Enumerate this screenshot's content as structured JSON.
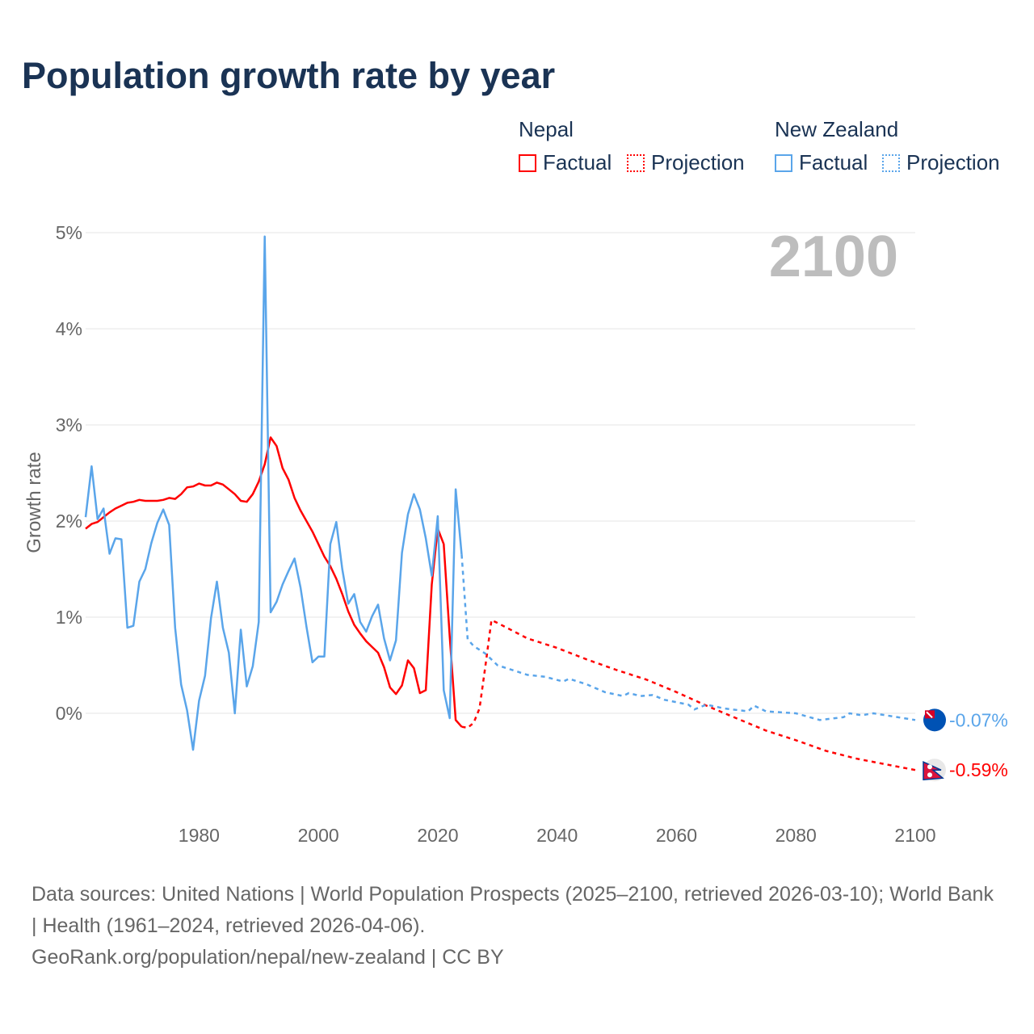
{
  "title": "Population growth rate by year",
  "legend": {
    "groups": [
      {
        "name": "Nepal",
        "color": "#ff0000",
        "factual": "Factual",
        "projection": "Projection"
      },
      {
        "name": "New Zealand",
        "color": "#5aa5ea",
        "factual": "Factual",
        "projection": "Projection"
      }
    ]
  },
  "footer": {
    "sources": "Data sources: United Nations | World Population Prospects (2025–2100, retrieved 2026-03-10); World Bank | Health (1961–2024, retrieved 2026-04-06).",
    "credit": "GeoRank.org/population/nepal/new-zealand | CC BY"
  },
  "chart_data": {
    "type": "line",
    "title": "Population growth rate by year",
    "ylabel": "Growth rate",
    "xlabel": "",
    "year_label": "2100",
    "xlim": [
      1961,
      2100
    ],
    "ylim": [
      -1.0,
      5.0
    ],
    "x_ticks": [
      1980,
      2000,
      2020,
      2040,
      2060,
      2080,
      2100
    ],
    "y_ticks": [
      {
        "v": 0,
        "label": "0%"
      },
      {
        "v": 1,
        "label": "1%"
      },
      {
        "v": 2,
        "label": "2%"
      },
      {
        "v": 3,
        "label": "3%"
      },
      {
        "v": 4,
        "label": "4%"
      },
      {
        "v": 5,
        "label": "5%"
      }
    ],
    "grid": true,
    "series": [
      {
        "name": "Nepal",
        "color": "#ff0000",
        "end_label": "-0.59%",
        "factual_start": 1961,
        "factual": [
          1.92,
          1.97,
          1.99,
          2.04,
          2.09,
          2.13,
          2.16,
          2.19,
          2.2,
          2.22,
          2.21,
          2.21,
          2.21,
          2.22,
          2.24,
          2.23,
          2.28,
          2.35,
          2.36,
          2.39,
          2.37,
          2.37,
          2.4,
          2.38,
          2.33,
          2.28,
          2.21,
          2.2,
          2.28,
          2.41,
          2.59,
          2.87,
          2.78,
          2.55,
          2.43,
          2.24,
          2.11,
          2.0,
          1.89,
          1.76,
          1.63,
          1.53,
          1.4,
          1.24,
          1.06,
          0.92,
          0.83,
          0.75,
          0.69,
          0.63,
          0.48,
          0.27,
          0.2,
          0.29,
          0.55,
          0.47,
          0.21,
          0.24,
          1.34,
          1.92,
          1.76,
          0.8,
          -0.07,
          -0.14
        ],
        "projection": [
          [
            2024,
            -0.14
          ],
          [
            2025,
            -0.15
          ],
          [
            2026,
            -0.1
          ],
          [
            2027,
            0.05
          ],
          [
            2028,
            0.5
          ],
          [
            2029,
            0.97
          ],
          [
            2030,
            0.94
          ],
          [
            2035,
            0.78
          ],
          [
            2040,
            0.68
          ],
          [
            2045,
            0.56
          ],
          [
            2050,
            0.45
          ],
          [
            2055,
            0.35
          ],
          [
            2060,
            0.22
          ],
          [
            2065,
            0.08
          ],
          [
            2070,
            -0.05
          ],
          [
            2075,
            -0.18
          ],
          [
            2080,
            -0.28
          ],
          [
            2085,
            -0.39
          ],
          [
            2090,
            -0.47
          ],
          [
            2095,
            -0.53
          ],
          [
            2100,
            -0.59
          ]
        ]
      },
      {
        "name": "New Zealand",
        "color": "#5aa5ea",
        "end_label": "-0.07%",
        "factual_start": 1961,
        "factual": [
          2.04,
          2.57,
          2.02,
          2.13,
          1.66,
          1.82,
          1.81,
          0.89,
          0.91,
          1.37,
          1.5,
          1.77,
          1.98,
          2.12,
          1.96,
          0.89,
          0.3,
          0.03,
          -0.38,
          0.13,
          0.39,
          0.99,
          1.37,
          0.89,
          0.63,
          0.0,
          0.87,
          0.28,
          0.49,
          0.95,
          4.96,
          1.05,
          1.16,
          1.34,
          1.48,
          1.61,
          1.31,
          0.9,
          0.53,
          0.59,
          0.59,
          1.76,
          1.99,
          1.5,
          1.14,
          1.24,
          0.95,
          0.85,
          1.01,
          1.13,
          0.78,
          0.55,
          0.76,
          1.67,
          2.07,
          2.28,
          2.12,
          1.82,
          1.43,
          2.05,
          0.24,
          -0.05,
          2.33,
          1.65
        ],
        "projection": [
          [
            2024,
            1.65
          ],
          [
            2025,
            0.77
          ],
          [
            2026,
            0.7
          ],
          [
            2028,
            0.62
          ],
          [
            2030,
            0.5
          ],
          [
            2033,
            0.44
          ],
          [
            2035,
            0.4
          ],
          [
            2038,
            0.38
          ],
          [
            2041,
            0.33
          ],
          [
            2042,
            0.36
          ],
          [
            2045,
            0.3
          ],
          [
            2048,
            0.22
          ],
          [
            2051,
            0.18
          ],
          [
            2052,
            0.21
          ],
          [
            2054,
            0.18
          ],
          [
            2056,
            0.19
          ],
          [
            2058,
            0.14
          ],
          [
            2062,
            0.09
          ],
          [
            2063,
            0.04
          ],
          [
            2065,
            0.09
          ],
          [
            2068,
            0.05
          ],
          [
            2072,
            0.02
          ],
          [
            2073,
            0.08
          ],
          [
            2075,
            0.02
          ],
          [
            2080,
            0.0
          ],
          [
            2084,
            -0.07
          ],
          [
            2088,
            -0.04
          ],
          [
            2089,
            0.0
          ],
          [
            2091,
            -0.02
          ],
          [
            2093,
            0.0
          ],
          [
            2095,
            -0.02
          ],
          [
            2100,
            -0.07
          ]
        ]
      }
    ]
  }
}
